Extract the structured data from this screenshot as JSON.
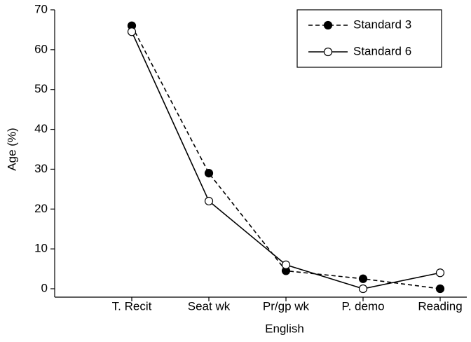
{
  "chart_data": {
    "type": "line",
    "x_label": "English",
    "y_label": "Age (%)",
    "categories": [
      "T. Recit",
      "Seat wk",
      "Pr/gp wk",
      "P. demo",
      "Reading"
    ],
    "series": [
      {
        "name": "Standard 3",
        "color": "#000000",
        "dash": true,
        "marker": "filled",
        "values": [
          66,
          29,
          4.5,
          2.5,
          0
        ]
      },
      {
        "name": "Standard 6",
        "color": "#000000",
        "dash": false,
        "marker": "open",
        "values": [
          64.5,
          22,
          6,
          0,
          4
        ]
      }
    ],
    "ylim": [
      0,
      70
    ],
    "yticks": [
      0,
      10,
      20,
      30,
      40,
      50,
      60,
      70
    ],
    "legend": "upper right",
    "grid": false
  }
}
